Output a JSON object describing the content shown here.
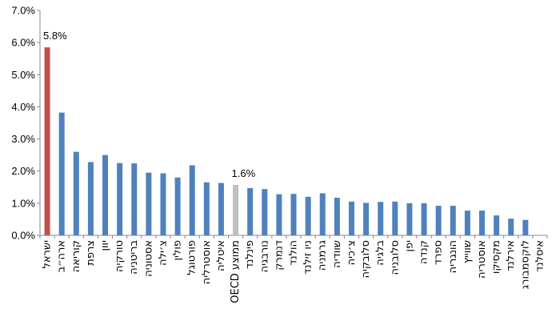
{
  "chart_data": {
    "type": "bar",
    "categories": [
      "ישראל",
      "ארה״ב",
      "קוריאה",
      "צרפת",
      "יוון",
      "טורקיה",
      "בריטניה",
      "אסטוניה",
      "צ׳ילה",
      "פולין",
      "פורטוגל",
      "אוסטרליה",
      "איטליה",
      "OECD ממוצע",
      "פינלנד",
      "נורבגיה",
      "דנמרק",
      "הולנד",
      "ניו זילנד",
      "גרמניה",
      "שוודיה",
      "צ׳כיה",
      "סלובקיה",
      "בלגיה",
      "סלובניה",
      "יפן",
      "קנדה",
      "ספרד",
      "הונגריה",
      "שווייץ",
      "אוסטריה",
      "מקסיקו",
      "אירלנד",
      "לוקסמבורג",
      "איסלנד"
    ],
    "values": [
      5.85,
      3.82,
      2.6,
      2.28,
      2.5,
      2.25,
      2.24,
      1.95,
      1.93,
      1.8,
      2.18,
      1.65,
      1.63,
      1.57,
      1.47,
      1.44,
      1.28,
      1.29,
      1.2,
      1.31,
      1.17,
      1.05,
      1.01,
      1.04,
      1.05,
      1.0,
      1.0,
      0.92,
      0.92,
      0.77,
      0.77,
      0.62,
      0.52,
      0.48,
      0.0
    ],
    "highlight": {
      "0": "#C0504D",
      "13": "#BFBFBF"
    },
    "bar_color": "#4F81BD",
    "data_labels": [
      {
        "index": 0,
        "text": "5.8%"
      },
      {
        "index": 13,
        "text": "1.6%"
      }
    ],
    "yticks": [
      "0.0%",
      "1.0%",
      "2.0%",
      "3.0%",
      "4.0%",
      "5.0%",
      "6.0%",
      "7.0%"
    ],
    "ylim": [
      0,
      7
    ],
    "title": "",
    "xlabel": "",
    "ylabel": "",
    "grid": false,
    "legend": "none"
  }
}
